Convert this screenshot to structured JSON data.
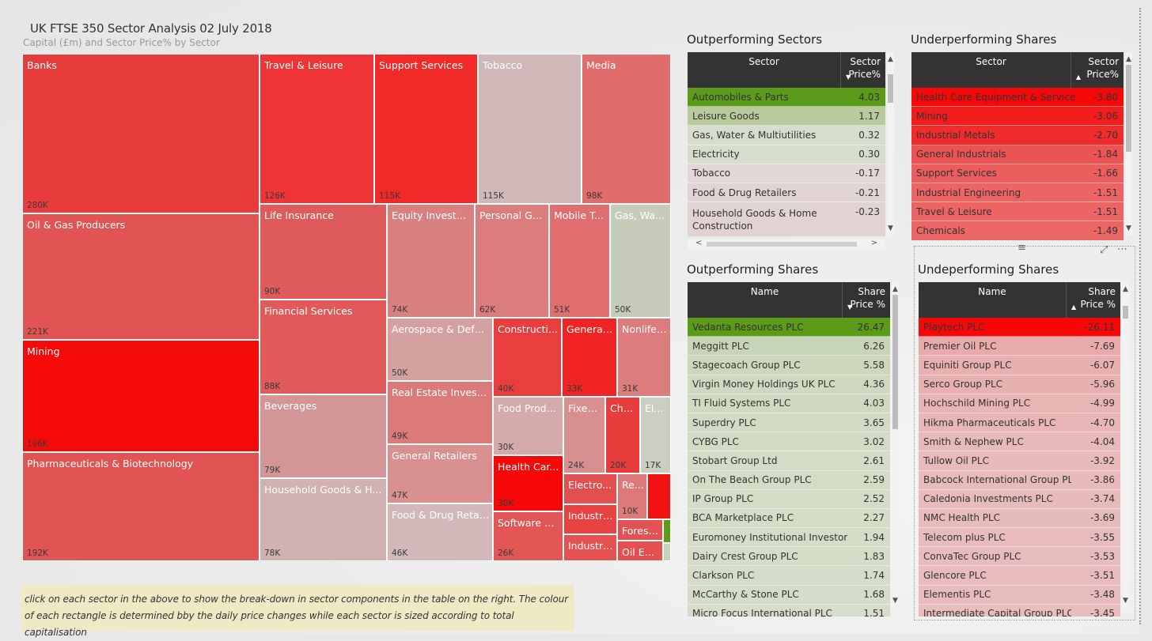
{
  "report": {
    "title": "UK FTSE 350 Sector Analysis  02 July 2018",
    "subtitle": "Capital (£m) and Sector Price% by Sector",
    "note": "click on each sector in the above to show the break-down in sector components in the table on the right. The colour of each rectangle is determined bby the daily price changes while each sector is sized according to total capitalisation"
  },
  "treemap": {
    "tiles": [
      {
        "label": "Banks",
        "value": "280K",
        "color": "#e83c3c"
      },
      {
        "label": "Oil & Gas Producers",
        "value": "221K",
        "color": "#e25353"
      },
      {
        "label": "Mining",
        "value": "196K",
        "color": "#f50a0a"
      },
      {
        "label": "Pharmaceuticals & Biotechnology",
        "value": "192K",
        "color": "#e25353"
      },
      {
        "label": "Travel & Leisure",
        "value": "126K",
        "color": "#ee3434"
      },
      {
        "label": "Support Services",
        "value": "115K",
        "color": "#f12929"
      },
      {
        "label": "Tobacco",
        "value": "115K",
        "color": "#d0b8b8"
      },
      {
        "label": "Media",
        "value": "98K",
        "color": "#e06c6c"
      },
      {
        "label": "Life Insurance",
        "value": "90K",
        "color": "#df5b5b"
      },
      {
        "label": "Financial Services",
        "value": "88K",
        "color": "#e05a5a"
      },
      {
        "label": "Beverages",
        "value": "79K",
        "color": "#d39595"
      },
      {
        "label": "Household Goods & H...",
        "value": "78K",
        "color": "#d1b1b1"
      },
      {
        "label": "Equity Investm...",
        "value": "74K",
        "color": "#d98080"
      },
      {
        "label": "Personal Go...",
        "value": "62K",
        "color": "#db7d7d"
      },
      {
        "label": "Mobile T...",
        "value": "51K",
        "color": "#e06e6e"
      },
      {
        "label": "Gas, Wat...",
        "value": "50K",
        "color": "#c7cbba"
      },
      {
        "label": "Aerospace & Defe...",
        "value": "50K",
        "color": "#d4a0a0"
      },
      {
        "label": "Real Estate Investm...",
        "value": "49K",
        "color": "#dc7a7a"
      },
      {
        "label": "General Retailers",
        "value": "47K",
        "color": "#d89090"
      },
      {
        "label": "Food & Drug Retail...",
        "value": "46K",
        "color": "#d2b8b8"
      },
      {
        "label": "Constructi...",
        "value": "40K",
        "color": "#ea3e3e"
      },
      {
        "label": "General ...",
        "value": "33K",
        "color": "#f02424"
      },
      {
        "label": "Nonlife ...",
        "value": "31K",
        "color": "#dc7c7c"
      },
      {
        "label": "Food Prod...",
        "value": "30K",
        "color": "#d4aaaa"
      },
      {
        "label": "Fixed...",
        "value": "24K",
        "color": "#d88f8f"
      },
      {
        "label": "Che...",
        "value": "20K",
        "color": "#e83d3d"
      },
      {
        "label": "El...",
        "value": "17K",
        "color": "#c9cec0"
      },
      {
        "label": "Health Car...",
        "value": "30K",
        "color": "#f70808"
      },
      {
        "label": "Software &...",
        "value": "26K",
        "color": "#e25656"
      },
      {
        "label": "Electro...",
        "value": "",
        "color": "#e24f4f"
      },
      {
        "label": "Re...",
        "value": "10K",
        "color": "#dd7979"
      },
      {
        "label": "",
        "value": "",
        "color": "#f31212"
      },
      {
        "label": "Industri...",
        "value": "",
        "color": "#e74343"
      },
      {
        "label": "Forest...",
        "value": "",
        "color": "#e25252"
      },
      {
        "label": "",
        "value": "",
        "color": "#5c9a1a"
      },
      {
        "label": "Industri...",
        "value": "",
        "color": "#e45252"
      },
      {
        "label": "Oil Eq...",
        "value": "",
        "color": "#e45050"
      },
      {
        "label": "",
        "value": "",
        "color": "#c5d4b4"
      }
    ]
  },
  "outperforming_sectors": {
    "title": "Outperforming Sectors",
    "col1": "Sector",
    "col2": "Sector Price%",
    "sort_glyph": "▼",
    "rows": [
      {
        "name": "Automobiles & Parts",
        "value": "4.03",
        "color": "#5c9a1a"
      },
      {
        "name": "Leisure Goods",
        "value": "1.17",
        "color": "#b9ca9c"
      },
      {
        "name": "Gas, Water & Multiutilities",
        "value": "0.32",
        "color": "#d6ddcc"
      },
      {
        "name": "Electricity",
        "value": "0.30",
        "color": "#d7ddcd"
      },
      {
        "name": "Tobacco",
        "value": "-0.17",
        "color": "#e2d6d6"
      },
      {
        "name": "Food & Drug Retailers",
        "value": "-0.21",
        "color": "#e2d4d4"
      },
      {
        "name": "Household Goods & Home Construction",
        "value": "-0.23",
        "color": "#e2d3d3"
      }
    ]
  },
  "underperforming_sectors": {
    "title": "Underperforming Shares",
    "col1": "Sector",
    "col2": "Sector Price%",
    "sort_glyph": "▲",
    "rows": [
      {
        "name": "Health Care Equipment & Services",
        "value": "-3.80",
        "color": "#f70808"
      },
      {
        "name": "Mining",
        "value": "-3.06",
        "color": "#f21c1c"
      },
      {
        "name": "Industrial Metals",
        "value": "-2.70",
        "color": "#ef2b2b"
      },
      {
        "name": "General Industrials",
        "value": "-1.84",
        "color": "#ec5454"
      },
      {
        "name": "Support Services",
        "value": "-1.66",
        "color": "#ec5d5d"
      },
      {
        "name": "Industrial Engineering",
        "value": "-1.51",
        "color": "#ec6464"
      },
      {
        "name": "Travel & Leisure",
        "value": "-1.51",
        "color": "#ec6464"
      },
      {
        "name": "Chemicals",
        "value": "-1.49",
        "color": "#ec6666"
      }
    ]
  },
  "outperforming_shares": {
    "title": "Outperforming Shares",
    "col1": "Name",
    "col2": "Share Price %",
    "sort_glyph": "▼",
    "rows": [
      {
        "name": "Vedanta Resources PLC",
        "value": "26.47",
        "color": "#5c9a1a"
      },
      {
        "name": "Meggitt PLC",
        "value": "6.26",
        "color": "#c9d5b8"
      },
      {
        "name": "Stagecoach Group PLC",
        "value": "5.58",
        "color": "#ccd7bc"
      },
      {
        "name": "Virgin Money Holdings UK PLC",
        "value": "4.36",
        "color": "#cfd9c0"
      },
      {
        "name": "TI Fluid Systems PLC",
        "value": "4.03",
        "color": "#d0dac2"
      },
      {
        "name": "Superdry PLC",
        "value": "3.65",
        "color": "#d1dbc3"
      },
      {
        "name": "CYBG PLC",
        "value": "3.02",
        "color": "#d2dbc5"
      },
      {
        "name": "Stobart Group Ltd",
        "value": "2.61",
        "color": "#d3dcc6"
      },
      {
        "name": "On The Beach Group PLC",
        "value": "2.59",
        "color": "#d3dcc6"
      },
      {
        "name": "IP Group PLC",
        "value": "2.52",
        "color": "#d3dcc6"
      },
      {
        "name": "BCA Marketplace PLC",
        "value": "2.27",
        "color": "#d4ddc8"
      },
      {
        "name": "Euromoney Institutional Investor PLC",
        "value": "1.94",
        "color": "#d5ddc9"
      },
      {
        "name": "Dairy Crest Group PLC",
        "value": "1.83",
        "color": "#d5ddc9"
      },
      {
        "name": "Clarkson PLC",
        "value": "1.74",
        "color": "#d5ddca"
      },
      {
        "name": "McCarthy & Stone PLC",
        "value": "1.68",
        "color": "#d5ddca"
      },
      {
        "name": "Micro Focus International PLC",
        "value": "1.51",
        "color": "#d6decb"
      }
    ]
  },
  "underperforming_shares": {
    "title": "Undeperforming Shares",
    "col1": "Name",
    "col2": "Share Price %",
    "sort_glyph": "▲",
    "rows": [
      {
        "name": "Playtech PLC",
        "value": "-26.11",
        "color": "#f70808"
      },
      {
        "name": "Premier Oil PLC",
        "value": "-7.69",
        "color": "#e8aaaa"
      },
      {
        "name": "Equiniti Group PLC",
        "value": "-6.07",
        "color": "#e8b0b0"
      },
      {
        "name": "Serco Group PLC",
        "value": "-5.96",
        "color": "#e8b1b1"
      },
      {
        "name": "Hochschild Mining PLC",
        "value": "-4.99",
        "color": "#e8b5b5"
      },
      {
        "name": "Hikma Pharmaceuticals PLC",
        "value": "-4.70",
        "color": "#e8b6b6"
      },
      {
        "name": "Smith & Nephew PLC",
        "value": "-4.04",
        "color": "#e8b9b9"
      },
      {
        "name": "Tullow Oil PLC",
        "value": "-3.92",
        "color": "#e8baba"
      },
      {
        "name": "Babcock International Group PLC",
        "value": "-3.86",
        "color": "#e8baba"
      },
      {
        "name": "Caledonia Investments PLC",
        "value": "-3.74",
        "color": "#e8bbbb"
      },
      {
        "name": "NMC Health PLC",
        "value": "-3.69",
        "color": "#e8bbbb"
      },
      {
        "name": "Telecom plus PLC",
        "value": "-3.55",
        "color": "#e8bcbc"
      },
      {
        "name": "ConvaTec Group PLC",
        "value": "-3.53",
        "color": "#e8bcbc"
      },
      {
        "name": "Glencore PLC",
        "value": "-3.51",
        "color": "#e8bcbc"
      },
      {
        "name": "Elementis PLC",
        "value": "-3.48",
        "color": "#e8bcbc"
      },
      {
        "name": "Intermediate Capital Group PLC",
        "value": "-3.45",
        "color": "#e8bdbd"
      }
    ]
  },
  "icons": {
    "scroll_up": "▲",
    "scroll_down": "▼",
    "scroll_left": "<",
    "scroll_right": ">",
    "drag_handle": "≡",
    "focus_mode": "⤢",
    "more_options": "⋯"
  }
}
